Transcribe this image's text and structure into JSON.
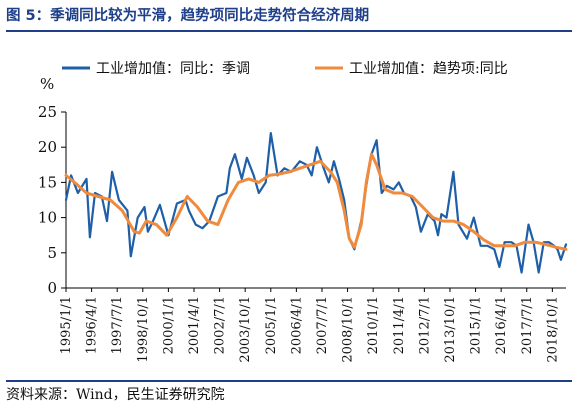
{
  "header": {
    "title": "图 5：季调同比较为平滑，趋势项同比走势符合经济周期"
  },
  "footer": {
    "source": "资料来源：Wind，民生证券研究院"
  },
  "colors": {
    "accent": "#1f3f8a",
    "series1": "#1f5fa8",
    "series2": "#f08a3c"
  },
  "chart_data": {
    "type": "line",
    "ylabel": "%",
    "ylim": [
      0,
      25
    ],
    "yticks": [
      0,
      5,
      10,
      15,
      20,
      25
    ],
    "grid": false,
    "legend_position": "top",
    "xticklabels": [
      "1995/1/1",
      "1996/4/1",
      "1997/7/1",
      "1998/10/1",
      "2000/1/1",
      "2001/4/1",
      "2002/7/1",
      "2003/10/1",
      "2005/1/1",
      "2006/4/1",
      "2007/7/1",
      "2008/10/1",
      "2010/1/1",
      "2011/4/1",
      "2012/7/1",
      "2013/10/1",
      "2015/1/1",
      "2016/4/1",
      "2017/7/1",
      "2018/10/1"
    ],
    "x_start": "1995/1/1",
    "x_end": "2019/6/1",
    "series": [
      {
        "name": "工业增加值：同比：季调",
        "color": "#1f5fa8",
        "x": [
          "1995/1",
          "1995/4",
          "1995/8",
          "1996/1",
          "1996/3",
          "1996/6",
          "1996/10",
          "1997/1",
          "1997/4",
          "1997/8",
          "1998/1",
          "1998/3",
          "1998/7",
          "1998/11",
          "1999/1",
          "1999/4",
          "1999/8",
          "2000/1",
          "2000/6",
          "2000/11",
          "2001/1",
          "2001/5",
          "2001/9",
          "2002/1",
          "2002/6",
          "2002/11",
          "2003/1",
          "2003/4",
          "2003/8",
          "2003/11",
          "2004/3",
          "2004/6",
          "2004/10",
          "2005/1",
          "2005/5",
          "2005/9",
          "2006/1",
          "2006/6",
          "2006/10",
          "2007/1",
          "2007/4",
          "2007/8",
          "2007/11",
          "2008/2",
          "2008/5",
          "2008/8",
          "2008/11",
          "2009/2",
          "2009/6",
          "2009/9",
          "2009/12",
          "2010/3",
          "2010/6",
          "2010/9",
          "2011/1",
          "2011/4",
          "2011/7",
          "2011/11",
          "2012/2",
          "2012/5",
          "2012/9",
          "2013/1",
          "2013/3",
          "2013/5",
          "2013/8",
          "2013/12",
          "2014/3",
          "2014/8",
          "2014/12",
          "2015/4",
          "2015/8",
          "2015/12",
          "2016/3",
          "2016/6",
          "2016/10",
          "2017/1",
          "2017/4",
          "2017/8",
          "2017/11",
          "2018/2",
          "2018/5",
          "2018/8",
          "2018/11",
          "2019/1",
          "2019/3",
          "2019/6"
        ],
        "y": [
          12.5,
          16.0,
          13.5,
          15.5,
          7.2,
          13.5,
          13.0,
          9.5,
          16.5,
          12.5,
          11.0,
          4.5,
          10.0,
          11.5,
          8.0,
          9.5,
          11.8,
          7.5,
          12.0,
          12.5,
          11.0,
          9.0,
          8.5,
          9.5,
          13.0,
          13.5,
          17.0,
          19.0,
          15.5,
          18.5,
          16.0,
          13.5,
          15.0,
          22.0,
          16.0,
          17.0,
          16.5,
          18.0,
          17.5,
          16.0,
          20.0,
          17.0,
          15.0,
          18.0,
          15.5,
          12.5,
          7.0,
          5.5,
          9.5,
          14.5,
          19.0,
          21.0,
          13.5,
          14.5,
          14.0,
          15.0,
          13.5,
          13.0,
          11.5,
          8.0,
          10.5,
          9.5,
          7.5,
          10.5,
          10.0,
          16.5,
          9.0,
          7.0,
          10.0,
          6.0,
          6.0,
          5.5,
          3.0,
          6.5,
          6.5,
          6.0,
          2.2,
          9.0,
          6.5,
          2.2,
          6.5,
          6.5,
          6.0,
          5.5,
          4.0,
          6.2
        ]
      },
      {
        "name": "工业增加值：趋势项:同比",
        "color": "#f08a3c",
        "x": [
          "1995/1",
          "1995/6",
          "1996/1",
          "1996/8",
          "1997/3",
          "1997/10",
          "1998/5",
          "1998/8",
          "1998/12",
          "1999/6",
          "1999/12",
          "2000/6",
          "2000/12",
          "2001/6",
          "2001/12",
          "2002/6",
          "2002/12",
          "2003/6",
          "2003/12",
          "2004/6",
          "2004/12",
          "2005/6",
          "2005/12",
          "2006/6",
          "2006/12",
          "2007/6",
          "2007/12",
          "2008/4",
          "2008/8",
          "2008/11",
          "2009/2",
          "2009/6",
          "2009/9",
          "2009/12",
          "2010/3",
          "2010/8",
          "2011/1",
          "2011/6",
          "2011/12",
          "2012/6",
          "2012/12",
          "2013/6",
          "2013/12",
          "2014/6",
          "2014/12",
          "2015/6",
          "2015/12",
          "2016/6",
          "2016/12",
          "2017/6",
          "2017/12",
          "2018/6",
          "2018/12",
          "2019/6"
        ],
        "y": [
          16.0,
          15.0,
          13.5,
          13.0,
          12.5,
          11.0,
          8.0,
          7.8,
          9.5,
          9.0,
          7.5,
          10.0,
          13.0,
          11.5,
          9.5,
          9.0,
          12.5,
          15.0,
          15.5,
          15.0,
          16.0,
          16.2,
          16.5,
          17.0,
          17.5,
          18.0,
          16.5,
          15.0,
          11.0,
          7.0,
          5.8,
          9.0,
          15.0,
          19.0,
          17.5,
          14.0,
          13.5,
          13.5,
          13.0,
          11.5,
          10.0,
          9.5,
          9.5,
          9.0,
          8.0,
          6.8,
          6.0,
          6.0,
          6.0,
          6.5,
          6.5,
          6.2,
          5.8,
          5.5
        ]
      }
    ]
  }
}
